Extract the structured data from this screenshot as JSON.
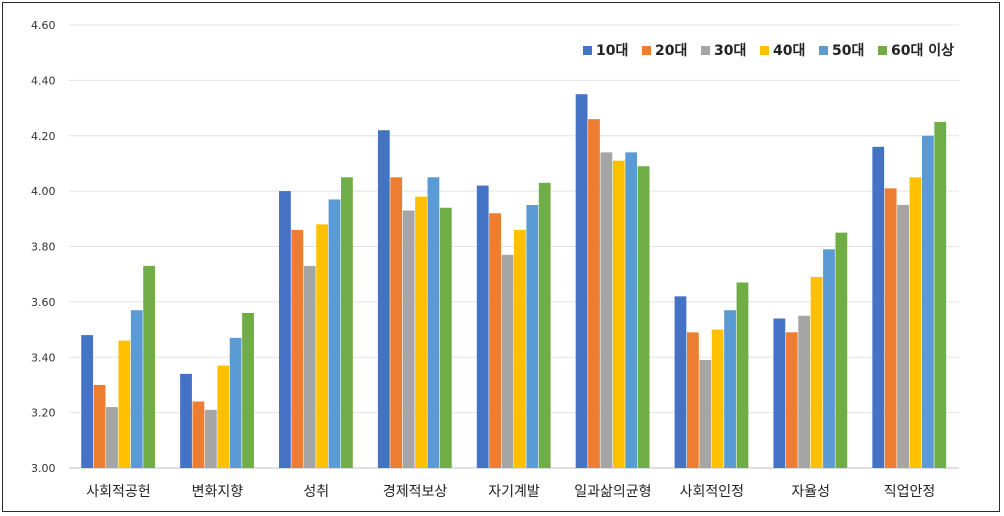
{
  "chart_data": {
    "type": "bar",
    "title": "",
    "xlabel": "",
    "ylabel": "",
    "ylim": [
      3.0,
      4.6
    ],
    "yticks": [
      "3.00",
      "3.20",
      "3.40",
      "3.60",
      "3.80",
      "4.00",
      "4.20",
      "4.40",
      "4.60"
    ],
    "ytick_values": [
      3.0,
      3.2,
      3.4,
      3.6,
      3.8,
      4.0,
      4.2,
      4.4,
      4.6
    ],
    "grid": true,
    "legend_position": "top-right",
    "categories": [
      "사회적공헌",
      "변화지향",
      "성취",
      "경제적보상",
      "자기계발",
      "일과삶의균형",
      "사회적인정",
      "자율성",
      "직업안정"
    ],
    "series": [
      {
        "name": "10대",
        "color": "#4472C4",
        "values": [
          3.48,
          3.34,
          4.0,
          4.22,
          4.02,
          4.35,
          3.62,
          3.54,
          4.16
        ]
      },
      {
        "name": "20대",
        "color": "#ED7D31",
        "values": [
          3.3,
          3.24,
          3.86,
          4.05,
          3.92,
          4.26,
          3.49,
          3.49,
          4.01
        ]
      },
      {
        "name": "30대",
        "color": "#A5A5A5",
        "values": [
          3.22,
          3.21,
          3.73,
          3.93,
          3.77,
          4.14,
          3.39,
          3.55,
          3.95
        ]
      },
      {
        "name": "40대",
        "color": "#FFC000",
        "values": [
          3.46,
          3.37,
          3.88,
          3.98,
          3.86,
          4.11,
          3.5,
          3.69,
          4.05
        ]
      },
      {
        "name": "50대",
        "color": "#5B9BD5",
        "values": [
          3.57,
          3.47,
          3.97,
          4.05,
          3.95,
          4.14,
          3.57,
          3.79,
          4.2
        ]
      },
      {
        "name": "60대 이상",
        "color": "#70AD47",
        "values": [
          3.73,
          3.56,
          4.05,
          3.94,
          4.03,
          4.09,
          3.67,
          3.85,
          4.25
        ]
      }
    ]
  }
}
